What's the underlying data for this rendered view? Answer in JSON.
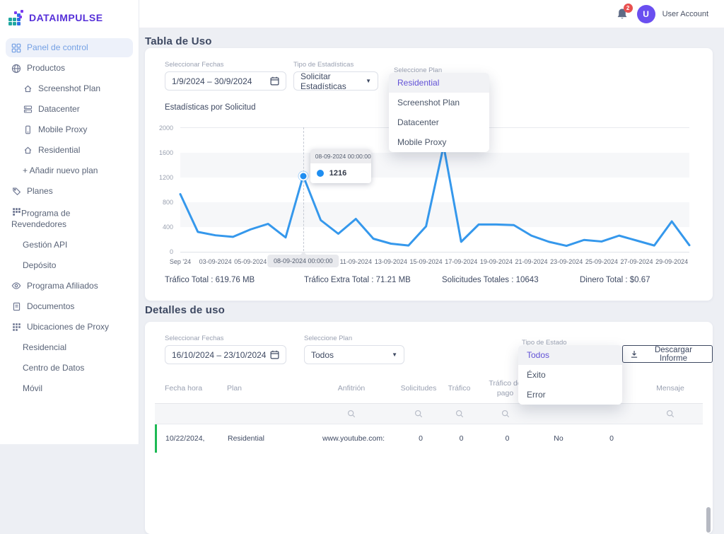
{
  "colors": {
    "accent_purple": "#6252d6",
    "logo_purple": "#5630d8",
    "logo_teal": "#1fa7a0",
    "logo_blue": "#2f6fe4",
    "line_blue": "#3598ec",
    "row_green": "#1db954",
    "badge_red": "#e8504f",
    "avatar_purple": "#6a4ff0",
    "active_item_blue": "#74a0e4"
  },
  "logo": {
    "text": "DATAIMPULSE"
  },
  "topbar": {
    "notification_count": "2",
    "avatar_initial": "U",
    "user_label": "User Account"
  },
  "sidebar": {
    "items": [
      {
        "label": "Panel de control",
        "icon": "dashboard-icon",
        "active": true
      },
      {
        "label": "Productos",
        "icon": "globe-icon"
      },
      {
        "label": "Screenshot Plan",
        "icon": "house-icon",
        "indent": true
      },
      {
        "label": "Datacenter",
        "icon": "server-icon",
        "indent": true
      },
      {
        "label": "Mobile Proxy",
        "icon": "mobile-icon",
        "indent": true
      },
      {
        "label": "Residential",
        "icon": "house-icon",
        "indent": true
      },
      {
        "label": "+ Añadir nuevo plan",
        "icon": null,
        "indent": true
      },
      {
        "label": "Planes",
        "icon": "tag-icon"
      },
      {
        "label": "Programa de Revendedores",
        "icon": "grid-icon",
        "wrap": true
      },
      {
        "label": "Gestión API",
        "icon": null,
        "indent": true
      },
      {
        "label": "Depósito",
        "icon": null,
        "indent": true
      },
      {
        "label": "Programa Afiliados",
        "icon": "eye-icon"
      },
      {
        "label": "Documentos",
        "icon": "document-icon"
      },
      {
        "label": "Ubicaciones de Proxy",
        "icon": "locations-icon"
      },
      {
        "label": "Residencial",
        "icon": null,
        "indent": true
      },
      {
        "label": "Centro de Datos",
        "icon": null,
        "indent": true
      },
      {
        "label": "Móvil",
        "icon": null,
        "indent": true
      }
    ]
  },
  "usage": {
    "title": "Tabla de Uso",
    "date_label": "Seleccionar Fechas",
    "date_value": "1/9/2024 – 30/9/2024",
    "stats_type_label": "Tipo de Estadísticas",
    "stats_type_value": "Solicitar Estadísticas",
    "plan_label": "Seleccione Plan",
    "plan_options": [
      "Residential",
      "Screenshot Plan",
      "Datacenter",
      "Mobile Proxy"
    ],
    "plan_selected": "Residential",
    "chart_label": "Estadísticas por Solicitud",
    "totals": [
      "Tráfico Total : 619.76 MB",
      "Tráfico Extra Total : 71.21 MB",
      "Solicitudes Totales : 10643",
      "Dinero Total : $0.67"
    ]
  },
  "chart_data": {
    "type": "line",
    "title": "Estadísticas por Solicitud",
    "x": [
      "01-09-2024",
      "02-09-2024",
      "03-09-2024",
      "04-09-2024",
      "05-09-2024",
      "06-09-2024",
      "07-09-2024",
      "08-09-2024",
      "09-09-2024",
      "10-09-2024",
      "11-09-2024",
      "12-09-2024",
      "13-09-2024",
      "14-09-2024",
      "15-09-2024",
      "16-09-2024",
      "17-09-2024",
      "18-09-2024",
      "19-09-2024",
      "20-09-2024",
      "21-09-2024",
      "22-09-2024",
      "23-09-2024",
      "24-09-2024",
      "25-09-2024",
      "26-09-2024",
      "27-09-2024",
      "28-09-2024",
      "29-09-2024",
      "30-09-2024"
    ],
    "values": [
      920,
      310,
      255,
      230,
      350,
      440,
      220,
      1216,
      500,
      280,
      520,
      200,
      120,
      90,
      400,
      1700,
      150,
      430,
      430,
      420,
      250,
      150,
      85,
      180,
      155,
      250,
      170,
      90,
      480,
      95
    ],
    "ylim": [
      0,
      2000
    ],
    "yticks": [
      0,
      400,
      800,
      1200,
      1600,
      2000
    ],
    "xticks": [
      {
        "index": 0,
        "label": "Sep '24"
      },
      {
        "index": 2,
        "label": "03-09-2024"
      },
      {
        "index": 4,
        "label": "05-09-2024"
      },
      {
        "index": 7,
        "label": "08-09-2024 00:00:00",
        "boxed": true
      },
      {
        "index": 10,
        "label": "11-09-2024"
      },
      {
        "index": 12,
        "label": "13-09-2024"
      },
      {
        "index": 14,
        "label": "15-09-2024"
      },
      {
        "index": 16,
        "label": "17-09-2024"
      },
      {
        "index": 18,
        "label": "19-09-2024"
      },
      {
        "index": 20,
        "label": "21-09-2024"
      },
      {
        "index": 22,
        "label": "23-09-2024"
      },
      {
        "index": 24,
        "label": "25-09-2024"
      },
      {
        "index": 26,
        "label": "27-09-2024"
      },
      {
        "index": 28,
        "label": "29-09-2024"
      }
    ],
    "highlight": {
      "index": 7,
      "value": 1216,
      "tooltip_title": "08-09-2024 00:00:00",
      "tooltip_value": "1216"
    },
    "grid": "horizontal-bands",
    "legend": false,
    "line_color": "#3598ec"
  },
  "details": {
    "title": "Detalles de uso",
    "date_label": "Seleccionar Fechas",
    "date_value": "16/10/2024 – 23/10/2024",
    "plan_label": "Seleccione Plan",
    "plan_value": "Todos",
    "estado_label": "Tipo de Estado",
    "estado_options": [
      "Todos",
      "Éxito",
      "Error"
    ],
    "estado_selected": "Todos",
    "download_label": "Descargar Informe",
    "table": {
      "headers": [
        "Fecha hora",
        "Plan",
        "Anfitrión",
        "Solicitudes",
        "Tráfico",
        "Tráfico de pago",
        "",
        "",
        "Mensaje"
      ],
      "search_columns": [
        2,
        3,
        4,
        5,
        8
      ],
      "row": [
        "10/22/2024,",
        "Residential",
        "www.youtube.com:",
        "0",
        "0",
        "0",
        "No",
        "0",
        ""
      ]
    }
  }
}
